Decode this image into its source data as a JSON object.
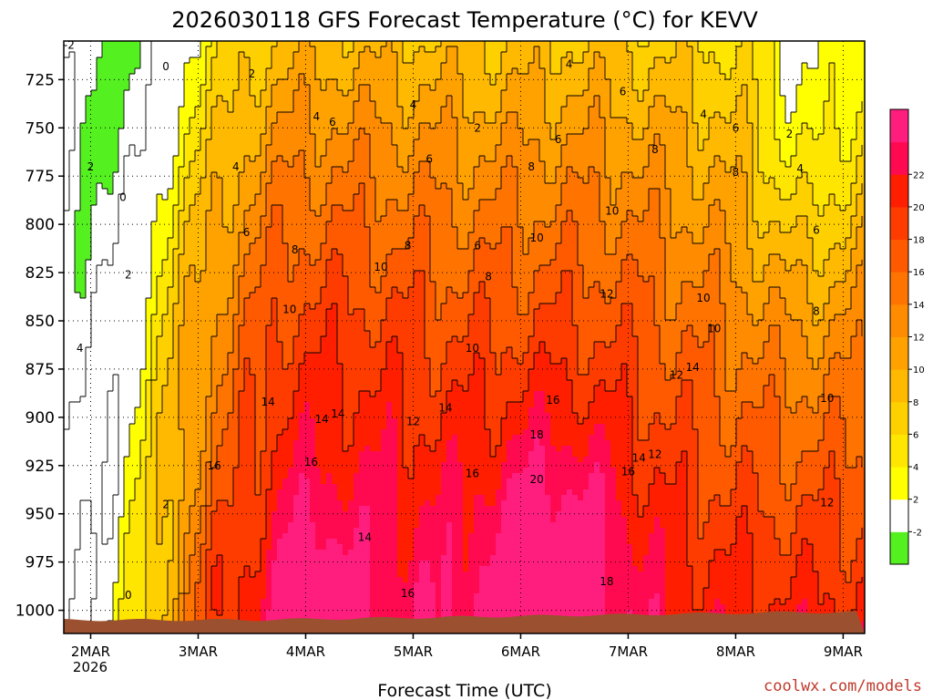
{
  "chart_data": {
    "type": "heatmap",
    "title": "2026030118 GFS Forecast Temperature (°C) for KEVV",
    "xlabel": "Forecast Time (UTC)",
    "ylabel": "",
    "credit": "coolwx.com/models",
    "y_axis": {
      "ticks": [
        "725",
        "750",
        "775",
        "800",
        "825",
        "850",
        "875",
        "900",
        "925",
        "950",
        "975",
        "1000"
      ],
      "values": [
        725,
        750,
        775,
        800,
        825,
        850,
        875,
        900,
        925,
        950,
        975,
        1000
      ],
      "range": [
        705,
        1012
      ],
      "units": "hPa"
    },
    "x_axis": {
      "ticks": [
        "2MAR",
        "3MAR",
        "4MAR",
        "5MAR",
        "6MAR",
        "7MAR",
        "8MAR",
        "9MAR"
      ],
      "year_label": "2026",
      "range_days": [
        -0.25,
        7.2
      ]
    },
    "colorbar": {
      "ticks": [
        "22",
        "20",
        "18",
        "16",
        "14",
        "12",
        "10",
        "8",
        "6",
        "4",
        "2",
        "-2"
      ],
      "levels": [
        -4,
        -2,
        2,
        4,
        6,
        8,
        10,
        12,
        14,
        16,
        18,
        20,
        22,
        24
      ],
      "colors": [
        "#55f020",
        "#ffffff",
        "#ffff00",
        "#ffe600",
        "#ffd000",
        "#ffb900",
        "#ffa200",
        "#ff8b00",
        "#ff7400",
        "#ff5a00",
        "#ff3c00",
        "#ff1e00",
        "#ff0a50",
        "#ff1e7e"
      ]
    },
    "contour_labels": [
      {
        "text": "-2",
        "day": -0.2,
        "p": 709
      },
      {
        "text": "0",
        "day": 0.7,
        "p": 720
      },
      {
        "text": "2",
        "day": 1.5,
        "p": 724
      },
      {
        "text": "2",
        "day": 0.0,
        "p": 772
      },
      {
        "text": "0",
        "day": 0.3,
        "p": 788
      },
      {
        "text": "2",
        "day": 0.35,
        "p": 828
      },
      {
        "text": "4",
        "day": -0.1,
        "p": 866
      },
      {
        "text": "2",
        "day": 0.7,
        "p": 947
      },
      {
        "text": "0",
        "day": 0.35,
        "p": 994
      },
      {
        "text": "4",
        "day": 1.35,
        "p": 772
      },
      {
        "text": "4",
        "day": 2.1,
        "p": 746
      },
      {
        "text": "6",
        "day": 2.25,
        "p": 749
      },
      {
        "text": "4",
        "day": 3.0,
        "p": 740
      },
      {
        "text": "6",
        "day": 3.15,
        "p": 768
      },
      {
        "text": "6",
        "day": 1.45,
        "p": 806
      },
      {
        "text": "8",
        "day": 1.9,
        "p": 815
      },
      {
        "text": "8",
        "day": 2.95,
        "p": 813
      },
      {
        "text": "10",
        "day": 2.7,
        "p": 824
      },
      {
        "text": "10",
        "day": 1.85,
        "p": 846
      },
      {
        "text": "2",
        "day": 3.6,
        "p": 752
      },
      {
        "text": "6",
        "day": 3.6,
        "p": 813
      },
      {
        "text": "8",
        "day": 3.7,
        "p": 829
      },
      {
        "text": "4",
        "day": 4.45,
        "p": 719
      },
      {
        "text": "6",
        "day": 4.35,
        "p": 758
      },
      {
        "text": "8",
        "day": 4.1,
        "p": 772
      },
      {
        "text": "10",
        "day": 4.15,
        "p": 809
      },
      {
        "text": "10",
        "day": 3.55,
        "p": 866
      },
      {
        "text": "6",
        "day": 4.95,
        "p": 733
      },
      {
        "text": "4",
        "day": 5.7,
        "p": 745
      },
      {
        "text": "8",
        "day": 5.25,
        "p": 763
      },
      {
        "text": "6",
        "day": 6.0,
        "p": 752
      },
      {
        "text": "8",
        "day": 6.0,
        "p": 775
      },
      {
        "text": "2",
        "day": 6.5,
        "p": 755
      },
      {
        "text": "4",
        "day": 6.6,
        "p": 773
      },
      {
        "text": "10",
        "day": 4.85,
        "p": 795
      },
      {
        "text": "12",
        "day": 4.8,
        "p": 838
      },
      {
        "text": "6",
        "day": 6.75,
        "p": 805
      },
      {
        "text": "8",
        "day": 6.75,
        "p": 847
      },
      {
        "text": "10",
        "day": 5.7,
        "p": 840
      },
      {
        "text": "10",
        "day": 5.8,
        "p": 856
      },
      {
        "text": "12",
        "day": 5.45,
        "p": 880
      },
      {
        "text": "14",
        "day": 5.6,
        "p": 876
      },
      {
        "text": "10",
        "day": 6.85,
        "p": 892
      },
      {
        "text": "12",
        "day": 6.85,
        "p": 946
      },
      {
        "text": "14",
        "day": 1.65,
        "p": 894
      },
      {
        "text": "14",
        "day": 2.15,
        "p": 903
      },
      {
        "text": "14",
        "day": 2.3,
        "p": 900
      },
      {
        "text": "12",
        "day": 3.0,
        "p": 904
      },
      {
        "text": "14",
        "day": 3.3,
        "p": 897
      },
      {
        "text": "16",
        "day": 4.3,
        "p": 893
      },
      {
        "text": "16",
        "day": 1.15,
        "p": 927
      },
      {
        "text": "16",
        "day": 2.05,
        "p": 925
      },
      {
        "text": "16",
        "day": 3.55,
        "p": 931
      },
      {
        "text": "14",
        "day": 2.55,
        "p": 964
      },
      {
        "text": "18",
        "day": 4.15,
        "p": 911
      },
      {
        "text": "20",
        "day": 4.15,
        "p": 934
      },
      {
        "text": "14",
        "day": 5.1,
        "p": 923
      },
      {
        "text": "12",
        "day": 5.25,
        "p": 921
      },
      {
        "text": "16",
        "day": 5.0,
        "p": 930
      },
      {
        "text": "18",
        "day": 4.8,
        "p": 987
      },
      {
        "text": "16",
        "day": 2.95,
        "p": 993
      }
    ]
  }
}
